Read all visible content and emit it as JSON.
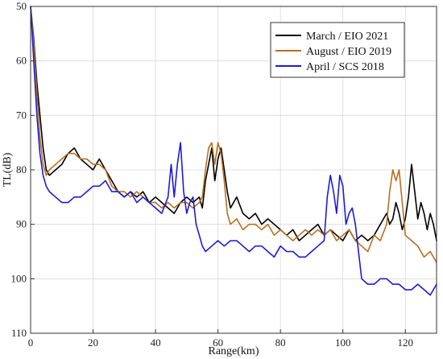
{
  "chart_data": {
    "type": "line",
    "title": "",
    "xlabel": "Range(km)",
    "ylabel": "TL(dB)",
    "xlim": [
      0,
      130
    ],
    "ylim": [
      50,
      110
    ],
    "y_reversed": true,
    "x_ticks": [
      0,
      20,
      40,
      60,
      80,
      100,
      120
    ],
    "y_ticks": [
      50,
      60,
      70,
      80,
      90,
      100,
      110
    ],
    "grid": true,
    "legend_position": "top-right",
    "series": [
      {
        "name": "March / EIO 2021",
        "color": "#000000",
        "x": [
          0,
          1,
          2,
          3,
          4,
          5,
          6,
          8,
          10,
          12,
          14,
          16,
          18,
          20,
          22,
          24,
          26,
          28,
          30,
          32,
          34,
          36,
          38,
          40,
          42,
          44,
          46,
          48,
          50,
          52,
          54,
          55,
          56,
          57,
          58,
          59,
          60,
          61,
          62,
          63,
          64,
          66,
          68,
          70,
          72,
          74,
          76,
          78,
          80,
          82,
          84,
          86,
          88,
          90,
          92,
          94,
          96,
          98,
          100,
          102,
          104,
          106,
          108,
          110,
          112,
          114,
          115,
          116,
          117,
          118,
          119,
          120,
          121,
          122,
          123,
          124,
          125,
          126,
          127,
          128,
          129,
          130
        ],
        "y": [
          50,
          56,
          64,
          70,
          76,
          80,
          81,
          80,
          79,
          77,
          76,
          78,
          79,
          80,
          78,
          80,
          82,
          84,
          85,
          84,
          85,
          84,
          86,
          85,
          86,
          87,
          88,
          86,
          85,
          86,
          85,
          87,
          82,
          79,
          76,
          82,
          78,
          76,
          80,
          84,
          87,
          85,
          88,
          89,
          88,
          90,
          89,
          90,
          91,
          92,
          91,
          93,
          92,
          91,
          90,
          92,
          91,
          92,
          93,
          91,
          93,
          92,
          93,
          92,
          90,
          88,
          90,
          89,
          86,
          88,
          91,
          89,
          85,
          79,
          84,
          89,
          86,
          88,
          91,
          88,
          90,
          93
        ]
      },
      {
        "name": "August / EIO 2019",
        "color": "#b8701e",
        "x": [
          0,
          1,
          2,
          3,
          4,
          5,
          6,
          8,
          10,
          12,
          14,
          16,
          18,
          20,
          22,
          24,
          26,
          28,
          30,
          32,
          34,
          36,
          38,
          40,
          42,
          44,
          46,
          48,
          50,
          52,
          54,
          55,
          56,
          57,
          58,
          59,
          60,
          61,
          62,
          63,
          64,
          66,
          68,
          70,
          72,
          74,
          76,
          78,
          80,
          82,
          84,
          86,
          88,
          90,
          92,
          94,
          96,
          98,
          100,
          102,
          104,
          106,
          108,
          110,
          112,
          114,
          115,
          116,
          117,
          118,
          119,
          120,
          122,
          124,
          126,
          128,
          130
        ],
        "y": [
          50,
          57,
          66,
          74,
          79,
          81,
          80,
          79,
          78,
          77,
          77,
          78,
          78,
          79,
          79,
          80,
          83,
          84,
          84,
          85,
          84,
          85,
          86,
          86,
          87,
          86,
          87,
          86,
          86,
          87,
          86,
          85,
          80,
          76,
          75,
          79,
          75,
          77,
          82,
          88,
          90,
          89,
          91,
          90,
          90,
          91,
          90,
          92,
          91,
          92,
          93,
          92,
          91,
          92,
          91,
          92,
          91,
          93,
          92,
          91,
          93,
          94,
          95,
          92,
          93,
          90,
          84,
          80,
          82,
          80,
          86,
          92,
          93,
          94,
          96,
          95,
          97
        ]
      },
      {
        "name": "April / SCS 2018",
        "color": "#1c1cd6",
        "x": [
          0,
          1,
          2,
          3,
          4,
          5,
          6,
          8,
          10,
          12,
          14,
          16,
          18,
          20,
          22,
          24,
          26,
          28,
          30,
          32,
          34,
          36,
          38,
          40,
          42,
          44,
          45,
          46,
          47,
          48,
          49,
          50,
          51,
          52,
          53,
          54,
          55,
          56,
          58,
          60,
          62,
          64,
          66,
          68,
          70,
          72,
          74,
          76,
          78,
          80,
          82,
          84,
          86,
          88,
          90,
          92,
          94,
          95,
          96,
          97,
          98,
          99,
          100,
          101,
          102,
          103,
          104,
          105,
          106,
          108,
          110,
          112,
          114,
          116,
          118,
          120,
          122,
          124,
          126,
          128,
          130
        ],
        "y": [
          50,
          60,
          70,
          77,
          81,
          83,
          84,
          85,
          86,
          86,
          85,
          85,
          84,
          83,
          83,
          82,
          84,
          84,
          85,
          84,
          86,
          85,
          86,
          87,
          88,
          85,
          79,
          85,
          79,
          75,
          84,
          88,
          86,
          85,
          90,
          92,
          94,
          95,
          94,
          93,
          94,
          93,
          93,
          94,
          95,
          94,
          94,
          95,
          96,
          94,
          95,
          95,
          96,
          96,
          95,
          94,
          93,
          85,
          81,
          84,
          88,
          81,
          83,
          90,
          88,
          87,
          90,
          95,
          100,
          101,
          101,
          100,
          100,
          101,
          101,
          102,
          102,
          101,
          102,
          103,
          101
        ]
      }
    ]
  }
}
